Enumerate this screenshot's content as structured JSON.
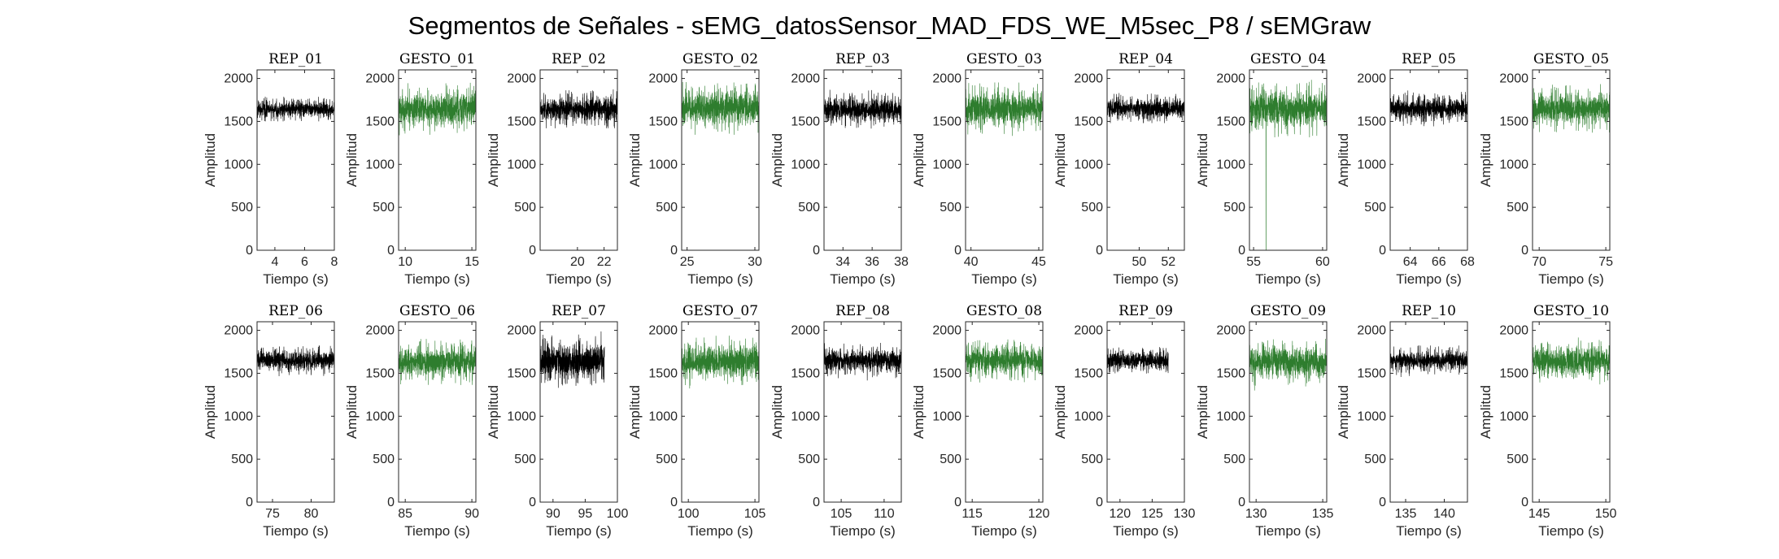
{
  "figure": {
    "title": "Segmentos de Señales - sEMG_datosSensor_MAD_FDS_WE_M5sec_P8 / sEMGraw",
    "colors": {
      "rep": "#000000",
      "gesto": "#2e7d2e"
    }
  },
  "chart_data": [
    {
      "type": "line",
      "title": "REP_01",
      "xlabel": "Tiempo (s)",
      "ylabel": "Amplitud",
      "xlim": [
        2.8,
        8
      ],
      "ylim": [
        0,
        2100
      ],
      "xticks": [
        4,
        6,
        8
      ],
      "yticks": [
        0,
        500,
        1000,
        1500,
        2000
      ],
      "color": "#000000",
      "signal": {
        "x_start": 2.8,
        "x_end": 8,
        "mean": 1640,
        "spread": 60,
        "min": 1500,
        "max": 1790
      }
    },
    {
      "type": "line",
      "title": "GESTO_01",
      "xlabel": "Tiempo (s)",
      "ylabel": "Amplitud",
      "xlim": [
        9.5,
        15.3
      ],
      "ylim": [
        0,
        2100
      ],
      "xticks": [
        10,
        15
      ],
      "yticks": [
        0,
        500,
        1000,
        1500,
        2000
      ],
      "color": "#2e7d2e",
      "signal": {
        "x_start": 9.5,
        "x_end": 15.3,
        "mean": 1650,
        "spread": 120,
        "min": 1300,
        "max": 1950
      }
    },
    {
      "type": "line",
      "title": "REP_02",
      "xlabel": "Tiempo (s)",
      "ylabel": "Amplitud",
      "xlim": [
        17.2,
        23
      ],
      "ylim": [
        0,
        2100
      ],
      "xticks": [
        20,
        22
      ],
      "yticks": [
        0,
        500,
        1000,
        1500,
        2000
      ],
      "color": "#000000",
      "signal": {
        "x_start": 17.2,
        "x_end": 23,
        "mean": 1640,
        "spread": 90,
        "min": 1420,
        "max": 1900
      }
    },
    {
      "type": "line",
      "title": "GESTO_02",
      "xlabel": "Tiempo (s)",
      "ylabel": "Amplitud",
      "xlim": [
        24.6,
        30.3
      ],
      "ylim": [
        0,
        2100
      ],
      "xticks": [
        25,
        30
      ],
      "yticks": [
        0,
        500,
        1000,
        1500,
        2000
      ],
      "color": "#2e7d2e",
      "signal": {
        "x_start": 24.6,
        "x_end": 30.3,
        "mean": 1650,
        "spread": 120,
        "min": 1300,
        "max": 2100
      }
    },
    {
      "type": "line",
      "title": "REP_03",
      "xlabel": "Tiempo (s)",
      "ylabel": "Amplitud",
      "xlim": [
        32.7,
        38
      ],
      "ylim": [
        0,
        2100
      ],
      "xticks": [
        34,
        36,
        38
      ],
      "yticks": [
        0,
        500,
        1000,
        1500,
        2000
      ],
      "color": "#000000",
      "signal": {
        "x_start": 32.7,
        "x_end": 38,
        "mean": 1640,
        "spread": 90,
        "min": 1400,
        "max": 1880
      }
    },
    {
      "type": "line",
      "title": "GESTO_03",
      "xlabel": "Tiempo (s)",
      "ylabel": "Amplitud",
      "xlim": [
        39.6,
        45.3
      ],
      "ylim": [
        0,
        2100
      ],
      "xticks": [
        40,
        45
      ],
      "yticks": [
        0,
        500,
        1000,
        1500,
        2000
      ],
      "color": "#2e7d2e",
      "signal": {
        "x_start": 39.6,
        "x_end": 45.3,
        "mean": 1650,
        "spread": 120,
        "min": 1250,
        "max": 2050
      }
    },
    {
      "type": "line",
      "title": "REP_04",
      "xlabel": "Tiempo (s)",
      "ylabel": "Amplitud",
      "xlim": [
        47.8,
        53.1
      ],
      "ylim": [
        0,
        2100
      ],
      "xticks": [
        50,
        52
      ],
      "yticks": [
        0,
        500,
        1000,
        1500,
        2000
      ],
      "color": "#000000",
      "signal": {
        "x_start": 47.8,
        "x_end": 53.1,
        "mean": 1650,
        "spread": 70,
        "min": 1480,
        "max": 1860
      }
    },
    {
      "type": "line",
      "title": "GESTO_04",
      "xlabel": "Tiempo (s)",
      "ylabel": "Amplitud",
      "xlim": [
        54.7,
        60.3
      ],
      "ylim": [
        0,
        2100
      ],
      "xticks": [
        55,
        60
      ],
      "yticks": [
        0,
        500,
        1000,
        1500,
        2000
      ],
      "color": "#2e7d2e",
      "signal": {
        "x_start": 54.7,
        "x_end": 60.3,
        "mean": 1650,
        "spread": 130,
        "min": 1250,
        "max": 2000,
        "spike": {
          "x": 55.9,
          "y": 0
        }
      }
    },
    {
      "type": "line",
      "title": "REP_05",
      "xlabel": "Tiempo (s)",
      "ylabel": "Amplitud",
      "xlim": [
        62.6,
        68
      ],
      "ylim": [
        0,
        2100
      ],
      "xticks": [
        64,
        66,
        68
      ],
      "yticks": [
        0,
        500,
        1000,
        1500,
        2000
      ],
      "color": "#000000",
      "signal": {
        "x_start": 62.6,
        "x_end": 68,
        "mean": 1650,
        "spread": 80,
        "min": 1350,
        "max": 1880
      }
    },
    {
      "type": "line",
      "title": "GESTO_05",
      "xlabel": "Tiempo (s)",
      "ylabel": "Amplitud",
      "xlim": [
        69.5,
        75.3
      ],
      "ylim": [
        0,
        2100
      ],
      "xticks": [
        70,
        75
      ],
      "yticks": [
        0,
        500,
        1000,
        1500,
        2000
      ],
      "color": "#2e7d2e",
      "signal": {
        "x_start": 69.5,
        "x_end": 75.3,
        "mean": 1650,
        "spread": 110,
        "min": 1350,
        "max": 1950
      }
    },
    {
      "type": "line",
      "title": "REP_06",
      "xlabel": "Tiempo (s)",
      "ylabel": "Amplitud",
      "xlim": [
        73,
        83
      ],
      "ylim": [
        0,
        2100
      ],
      "xticks": [
        75,
        80
      ],
      "yticks": [
        0,
        500,
        1000,
        1500,
        2000
      ],
      "color": "#000000",
      "signal": {
        "x_start": 73,
        "x_end": 83,
        "mean": 1650,
        "spread": 70,
        "min": 1450,
        "max": 1900
      }
    },
    {
      "type": "line",
      "title": "GESTO_06",
      "xlabel": "Tiempo (s)",
      "ylabel": "Amplitud",
      "xlim": [
        84.5,
        90.3
      ],
      "ylim": [
        0,
        2100
      ],
      "xticks": [
        85,
        90
      ],
      "yticks": [
        0,
        500,
        1000,
        1500,
        2000
      ],
      "color": "#2e7d2e",
      "signal": {
        "x_start": 84.5,
        "x_end": 90.3,
        "mean": 1640,
        "spread": 110,
        "min": 1300,
        "max": 1950
      }
    },
    {
      "type": "line",
      "title": "REP_07",
      "xlabel": "Tiempo (s)",
      "ylabel": "Amplitud",
      "xlim": [
        88,
        100
      ],
      "ylim": [
        0,
        2100
      ],
      "xticks": [
        90,
        95,
        100
      ],
      "yticks": [
        0,
        500,
        1000,
        1500,
        2000
      ],
      "color": "#000000",
      "signal": {
        "x_start": 88,
        "x_end": 98,
        "mean": 1640,
        "spread": 120,
        "min": 1300,
        "max": 2000
      }
    },
    {
      "type": "line",
      "title": "GESTO_07",
      "xlabel": "Tiempo (s)",
      "ylabel": "Amplitud",
      "xlim": [
        99.5,
        105.3
      ],
      "ylim": [
        0,
        2100
      ],
      "xticks": [
        100,
        105
      ],
      "yticks": [
        0,
        500,
        1000,
        1500,
        2000
      ],
      "color": "#2e7d2e",
      "signal": {
        "x_start": 99.5,
        "x_end": 105.3,
        "mean": 1630,
        "spread": 120,
        "min": 1300,
        "max": 2000
      }
    },
    {
      "type": "line",
      "title": "REP_08",
      "xlabel": "Tiempo (s)",
      "ylabel": "Amplitud",
      "xlim": [
        103,
        112
      ],
      "ylim": [
        0,
        2100
      ],
      "xticks": [
        105,
        110
      ],
      "yticks": [
        0,
        500,
        1000,
        1500,
        2000
      ],
      "color": "#000000",
      "signal": {
        "x_start": 103,
        "x_end": 112,
        "mean": 1650,
        "spread": 80,
        "min": 1330,
        "max": 2000
      }
    },
    {
      "type": "line",
      "title": "GESTO_08",
      "xlabel": "Tiempo (s)",
      "ylabel": "Amplitud",
      "xlim": [
        114.5,
        120.3
      ],
      "ylim": [
        0,
        2100
      ],
      "xticks": [
        115,
        120
      ],
      "yticks": [
        0,
        500,
        1000,
        1500,
        2000
      ],
      "color": "#2e7d2e",
      "signal": {
        "x_start": 114.5,
        "x_end": 120.3,
        "mean": 1650,
        "spread": 100,
        "min": 1350,
        "max": 1950
      }
    },
    {
      "type": "line",
      "title": "REP_09",
      "xlabel": "Tiempo (s)",
      "ylabel": "Amplitud",
      "xlim": [
        118,
        130
      ],
      "ylim": [
        0,
        2100
      ],
      "xticks": [
        120,
        125,
        130
      ],
      "yticks": [
        0,
        500,
        1000,
        1500,
        2000
      ],
      "color": "#000000",
      "signal": {
        "x_start": 118,
        "x_end": 127.5,
        "mean": 1650,
        "spread": 60,
        "min": 1480,
        "max": 1960
      }
    },
    {
      "type": "line",
      "title": "GESTO_09",
      "xlabel": "Tiempo (s)",
      "ylabel": "Amplitud",
      "xlim": [
        129.5,
        135.3
      ],
      "ylim": [
        0,
        2100
      ],
      "xticks": [
        130,
        135
      ],
      "yticks": [
        0,
        500,
        1000,
        1500,
        2000
      ],
      "color": "#2e7d2e",
      "signal": {
        "x_start": 129.5,
        "x_end": 135.3,
        "mean": 1630,
        "spread": 110,
        "min": 1300,
        "max": 1950
      }
    },
    {
      "type": "line",
      "title": "REP_10",
      "xlabel": "Tiempo (s)",
      "ylabel": "Amplitud",
      "xlim": [
        133,
        143
      ],
      "ylim": [
        0,
        2100
      ],
      "xticks": [
        135,
        140
      ],
      "yticks": [
        0,
        500,
        1000,
        1500,
        2000
      ],
      "color": "#000000",
      "signal": {
        "x_start": 133,
        "x_end": 143,
        "mean": 1650,
        "spread": 70,
        "min": 1430,
        "max": 1950
      }
    },
    {
      "type": "line",
      "title": "GESTO_10",
      "xlabel": "Tiempo (s)",
      "ylabel": "Amplitud",
      "xlim": [
        144.5,
        150.3
      ],
      "ylim": [
        0,
        2100
      ],
      "xticks": [
        145,
        150
      ],
      "yticks": [
        0,
        500,
        1000,
        1500,
        2000
      ],
      "color": "#2e7d2e",
      "signal": {
        "x_start": 144.5,
        "x_end": 150.3,
        "mean": 1640,
        "spread": 110,
        "min": 1300,
        "max": 2000
      }
    }
  ]
}
